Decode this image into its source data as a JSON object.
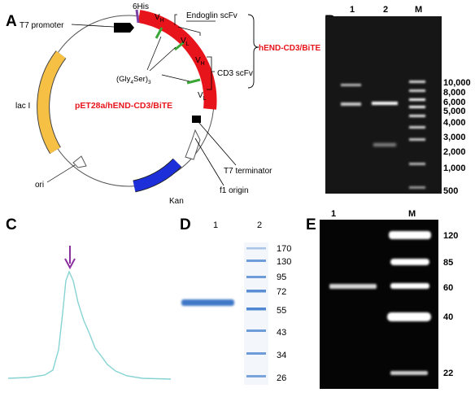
{
  "panels": {
    "a": {
      "letter": "A",
      "t7_promoter": "T7 promoter",
      "his": "6His",
      "vh": "V",
      "vh_sub": "H",
      "vl": "V",
      "vl_sub": "L",
      "endoglin": "Endoglin scFv",
      "construct": "hEND-CD3/BiTE",
      "linker_pre": "(Gly",
      "linker_sub": "4",
      "linker_post": "Ser)",
      "linker_rep": "3",
      "cd3": "CD3 scFv",
      "laci": "lac I",
      "plasmid": "pET28a/hEND-CD3/BiTE",
      "ori": "ori",
      "kan": "Kan",
      "t7_terminator": "T7 terminator",
      "f1": "f1 origin",
      "colors": {
        "construct_red": "#e8141b",
        "linker_green": "#3aa635",
        "lac_yellow": "#f6c044",
        "kan_blue": "#1d2fd8",
        "his_purple": "#7b3fa8"
      }
    },
    "b": {
      "letter": "B",
      "lanes": [
        "1",
        "2",
        "M"
      ],
      "markers": [
        "10,000",
        "8,000",
        "6,000",
        "5,000",
        "4,000",
        "3,000",
        "2,000",
        "1,000",
        "500"
      ]
    },
    "c": {
      "letter": "C",
      "curve_color": "#87d3d3",
      "arrow_color": "#8b2fa0"
    },
    "d": {
      "letter": "D",
      "lanes": [
        "1",
        "2"
      ],
      "markers": [
        "170",
        "130",
        "95",
        "72",
        "55",
        "43",
        "34",
        "26"
      ]
    },
    "e": {
      "letter": "E",
      "lanes": [
        "1",
        "M"
      ],
      "markers": [
        "120",
        "85",
        "60",
        "40",
        "22"
      ]
    }
  }
}
